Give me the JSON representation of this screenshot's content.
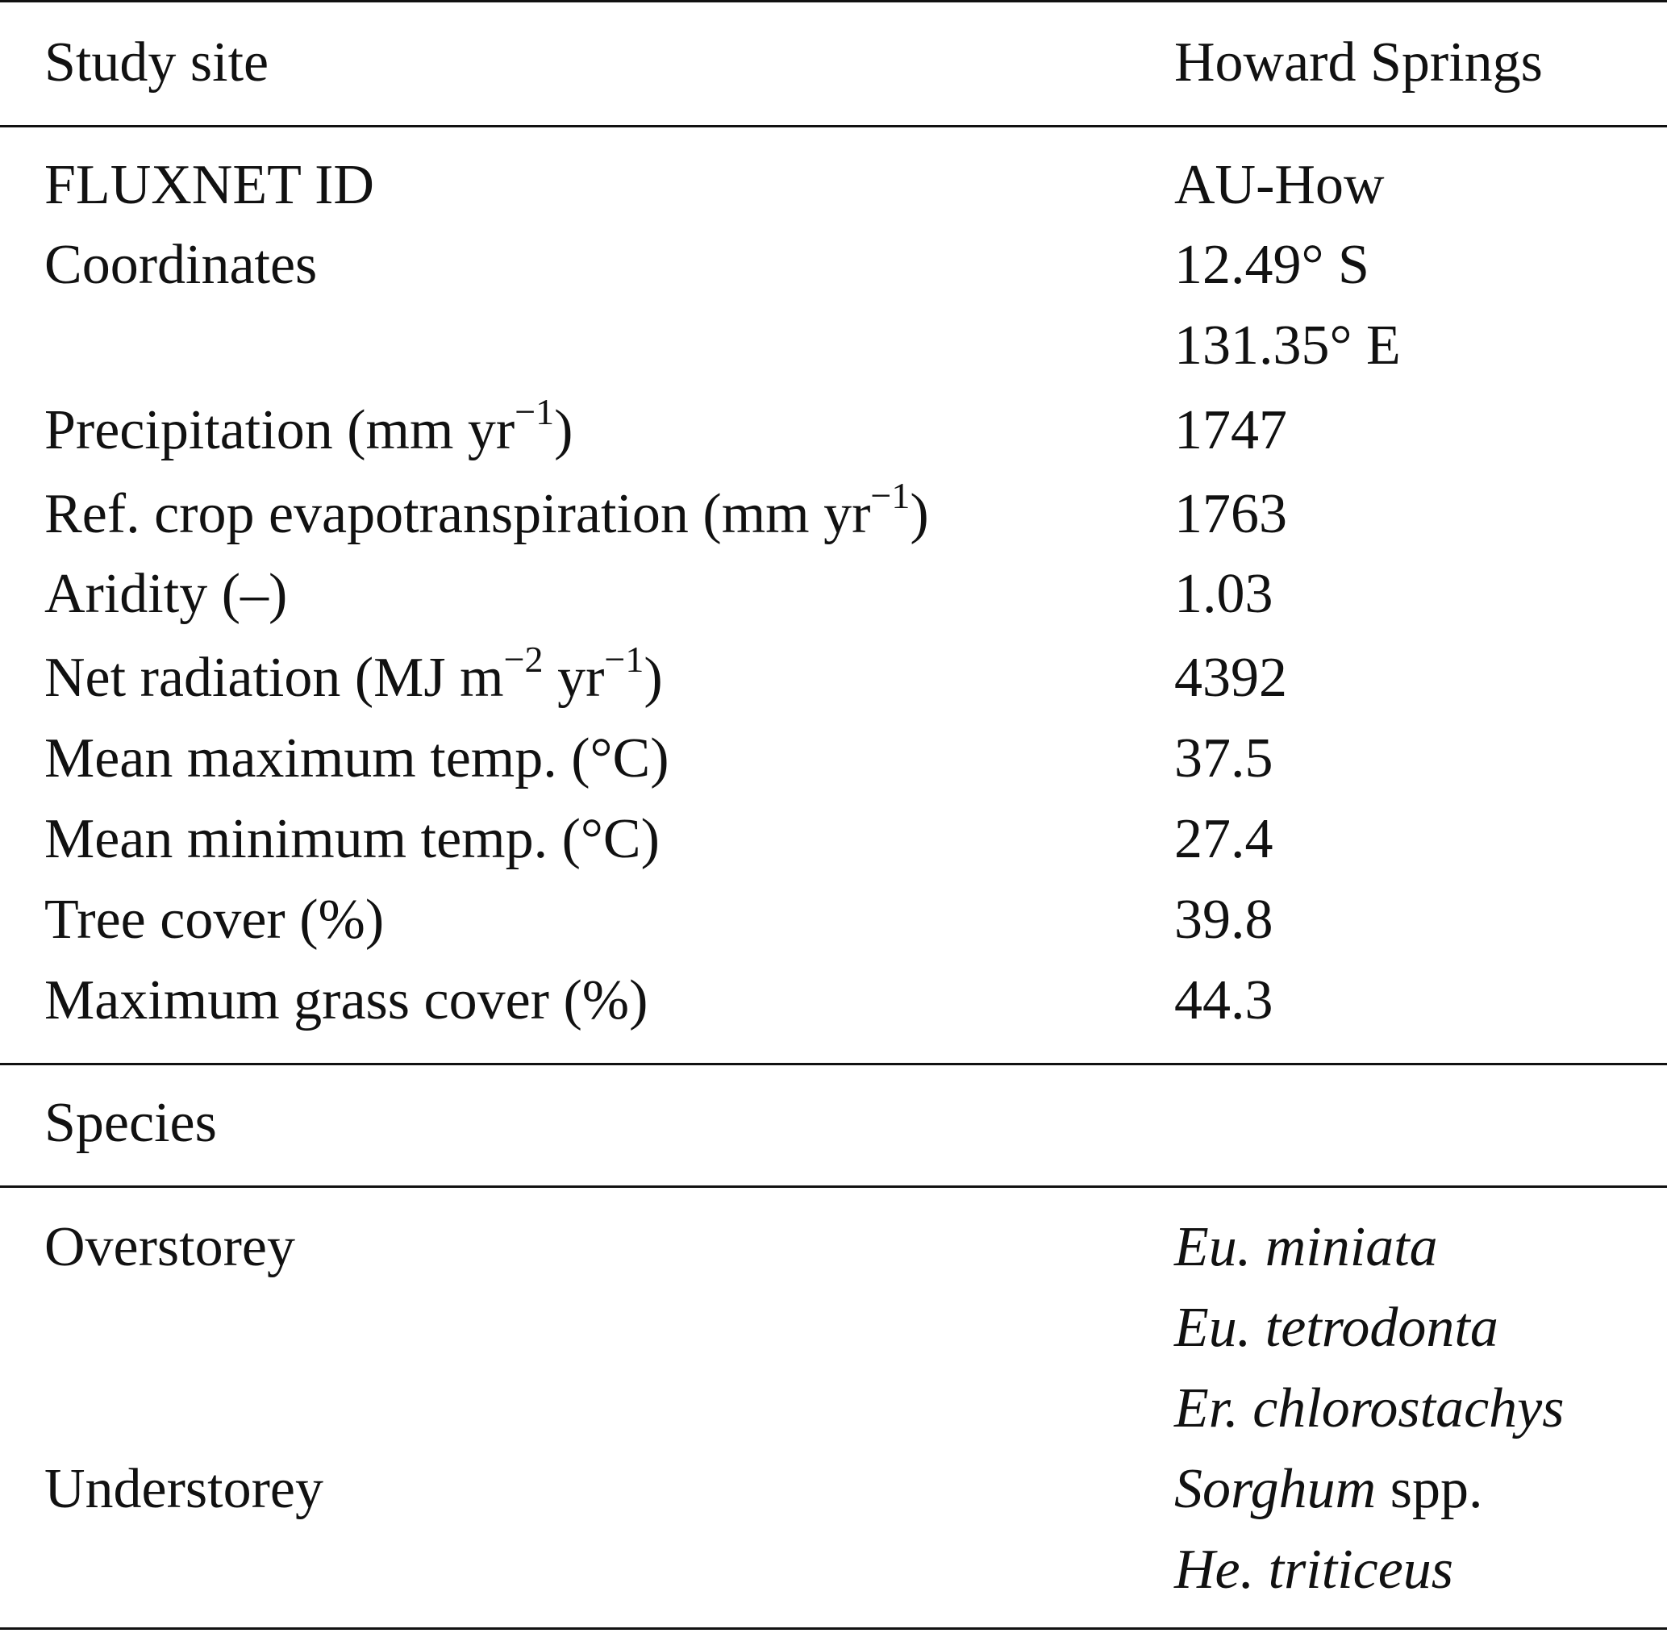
{
  "header": {
    "left": "Study site",
    "right": "Howard Springs"
  },
  "rows": [
    {
      "label": "FLUXNET ID",
      "value": "AU-How"
    },
    {
      "label": "Coordinates",
      "value": "12.49° S",
      "value2": "131.35° E"
    },
    {
      "label_main": "Precipitation (mm yr",
      "label_sup": "−1",
      "label_end": ")",
      "value": "1747"
    },
    {
      "label_main": "Ref. crop evapotranspiration (mm yr",
      "label_sup": "−1",
      "label_end": ")",
      "value": "1763"
    },
    {
      "label": "Aridity (–)",
      "value": "1.03"
    },
    {
      "label_main": "Net radiation (MJ m",
      "label_sup": "−2",
      "label_mid": " yr",
      "label_sup2": "−1",
      "label_end": ")",
      "value": "4392"
    },
    {
      "label": "Mean maximum temp. (°C)",
      "value": "37.5"
    },
    {
      "label": "Mean minimum temp. (°C)",
      "value": "27.4"
    },
    {
      "label": "Tree cover (%)",
      "value": "39.8"
    },
    {
      "label": "Maximum grass cover (%)",
      "value": "44.3"
    }
  ],
  "species_header": "Species",
  "species": {
    "overstorey": {
      "label": "Overstorey",
      "items": [
        "Eu. miniata",
        "Eu. tetrodonta",
        "Er. chlorostachys"
      ]
    },
    "understorey": {
      "label": "Understorey",
      "item1_italic": "Sorghum",
      "item1_rest": " spp.",
      "item2": "He. triticeus"
    }
  }
}
